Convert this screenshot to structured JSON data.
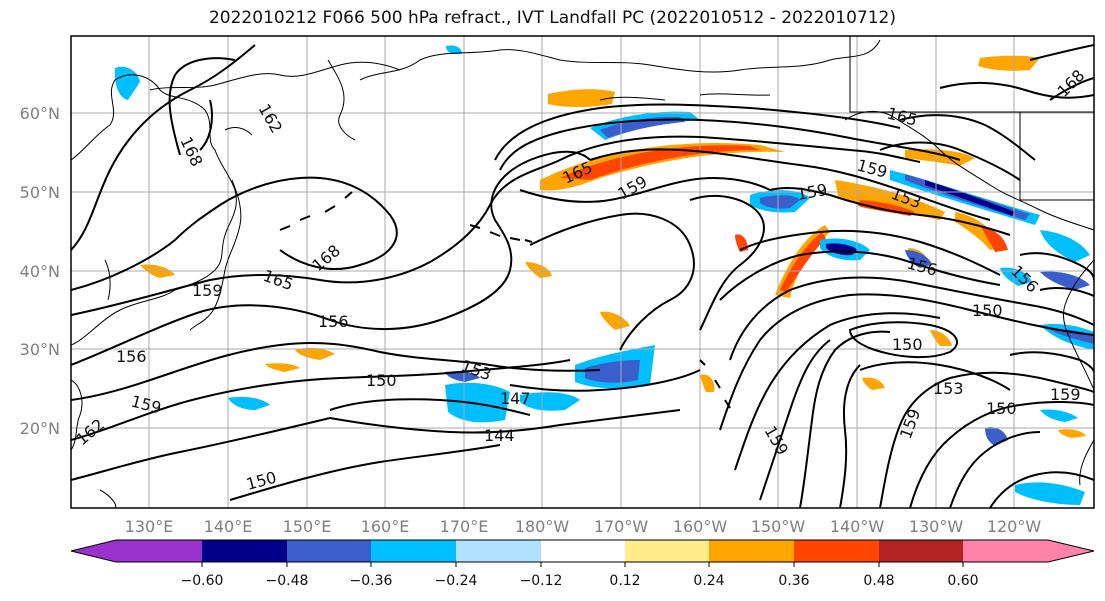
{
  "title": "2022010212 F066 500 hPa refract., IVT Landfall PC (2022010512 - 2022010712)",
  "axes": {
    "lat_ticks": [
      "20°N",
      "30°N",
      "40°N",
      "50°N",
      "60°N"
    ],
    "lon_ticks": [
      "130°E",
      "140°E",
      "150°E",
      "160°E",
      "170°E",
      "180°W",
      "170°W",
      "160°W",
      "150°W",
      "140°W",
      "130°W",
      "120°W"
    ]
  },
  "colorbar": {
    "levels": [
      "−0.60",
      "−0.48",
      "−0.36",
      "−0.24",
      "−0.12",
      "0.12",
      "0.24",
      "0.36",
      "0.48",
      "0.60"
    ],
    "colors": [
      "#9932cc",
      "#00008b",
      "#3a5fcd",
      "#00bfff",
      "#b0e2ff",
      "#ffffff",
      "#ffec8b",
      "#ffa500",
      "#ff4500",
      "#b22222",
      "#ff82ab"
    ]
  },
  "contour_labels": [
    "162",
    "168",
    "165",
    "159",
    "156",
    "153",
    "150",
    "147",
    "144",
    "168",
    "165",
    "159",
    "150",
    "156",
    "159",
    "162",
    "159",
    "159",
    "156",
    "150",
    "153",
    "150",
    "159",
    "165",
    "159",
    "168",
    "156",
    "159",
    "150",
    "153"
  ]
}
